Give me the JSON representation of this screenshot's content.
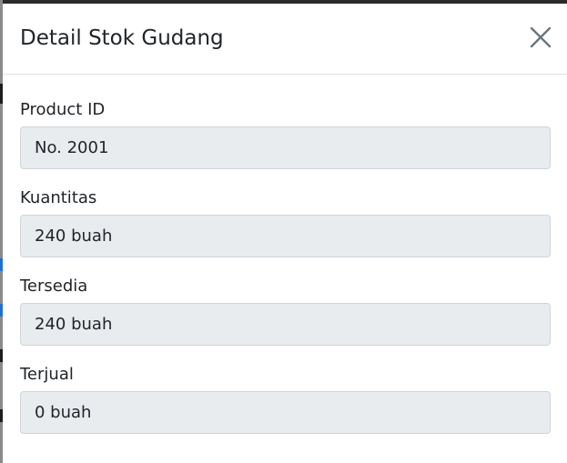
{
  "modal": {
    "title": "Detail Stok Gudang"
  },
  "icons": {
    "close": "close-icon"
  },
  "colors": {
    "input_background": "#e9ecef",
    "input_border": "#ced4da",
    "text": "#212529",
    "close_icon": "#6c757d",
    "divider": "#dee2e6"
  },
  "fields": [
    {
      "label": "Product ID",
      "value": "No. 2001"
    },
    {
      "label": "Kuantitas",
      "value": "240 buah"
    },
    {
      "label": "Tersedia",
      "value": "240 buah"
    },
    {
      "label": "Terjual",
      "value": "0 buah"
    }
  ]
}
